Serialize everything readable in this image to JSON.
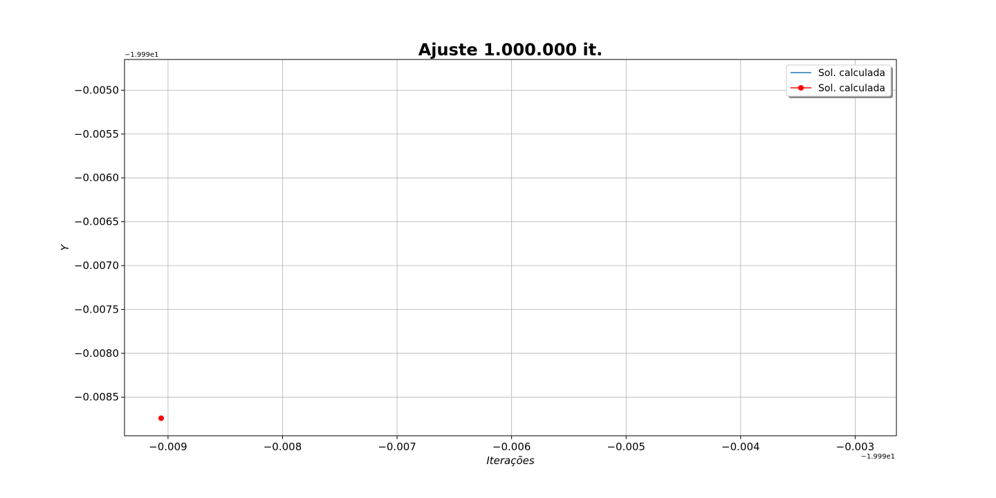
{
  "chart_data": {
    "type": "line",
    "title": "Ajuste 1.000.000 it.",
    "xlabel": "Iterações",
    "ylabel": "Y",
    "x_offset_text": "−1.999e1",
    "y_offset_text": "−1.999e1",
    "xlim": [
      -0.00938,
      -0.00264
    ],
    "ylim": [
      -0.00894,
      -0.00465
    ],
    "x_ticks": [
      -0.009,
      -0.008,
      -0.007,
      -0.006,
      -0.005,
      -0.004,
      -0.003
    ],
    "x_tick_labels": [
      "−0.009",
      "−0.008",
      "−0.007",
      "−0.006",
      "−0.005",
      "−0.004",
      "−0.003"
    ],
    "y_ticks": [
      -0.005,
      -0.0055,
      -0.006,
      -0.0065,
      -0.007,
      -0.0075,
      -0.008,
      -0.0085
    ],
    "y_tick_labels": [
      "−0.0050",
      "−0.0055",
      "−0.0060",
      "−0.0065",
      "−0.0070",
      "−0.0075",
      "−0.0080",
      "−0.0085"
    ],
    "grid": true,
    "legend_position": "top-right",
    "series": [
      {
        "name": "Sol. calculada",
        "color": "#1f77b4",
        "marker": "none",
        "x": [],
        "y": []
      },
      {
        "name": "Sol. calculada",
        "color": "#ff0000",
        "marker": "circle",
        "x": [
          -0.00906
        ],
        "y": [
          -0.00874
        ]
      }
    ]
  }
}
